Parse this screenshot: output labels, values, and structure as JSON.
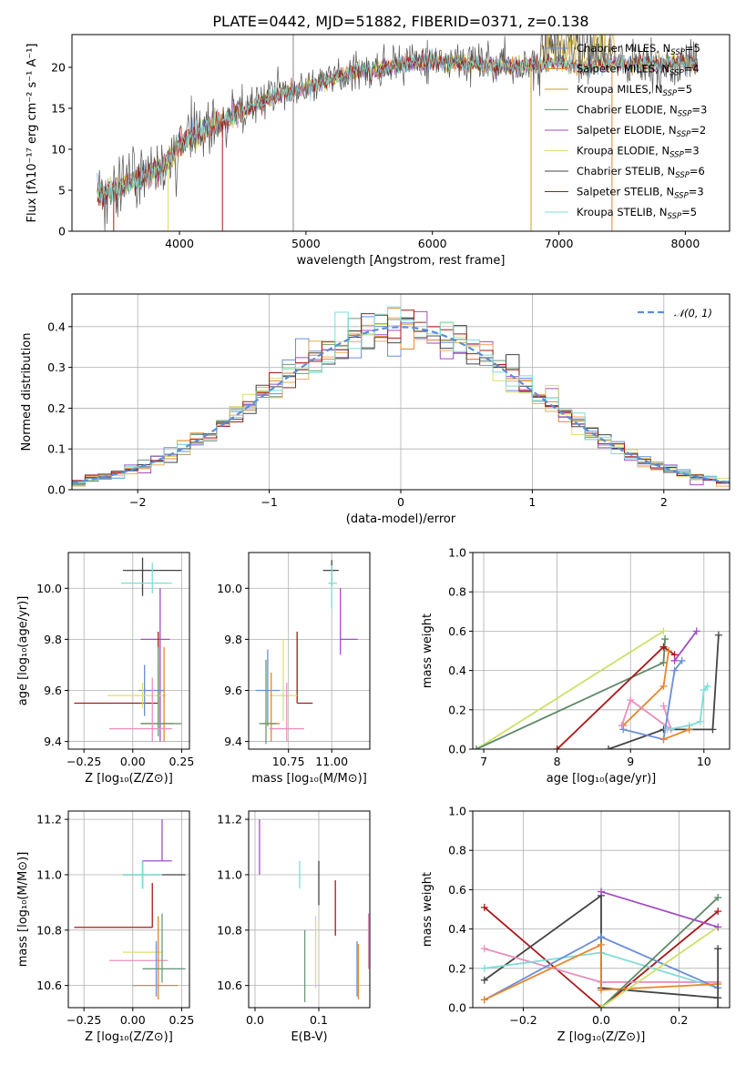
{
  "title": "PLATE=0442, MJD=51882, FIBERID=0371, z=0.138",
  "colors": [
    "#6a8fd8",
    "#e8862a",
    "#6b9b76",
    "#a24dc2",
    "#e8e060",
    "#ecaa5c",
    "#333333",
    "#aa1818",
    "#7fdcd8",
    "#e890c0",
    "#cde066",
    "#aa1818"
  ],
  "chart_data": [
    {
      "id": "spectrum",
      "type": "line",
      "xlabel": "wavelength [Angstrom, rest frame]",
      "ylabel": "Flux [fλ10⁻¹⁷ erg cm⁻² s⁻¹ A⁻¹]",
      "xlim": [
        3150,
        8350
      ],
      "ylim": [
        0,
        24
      ],
      "xticks": [
        4000,
        5000,
        6000,
        7000,
        8000
      ],
      "yticks": [
        0,
        5,
        10,
        15,
        20
      ],
      "legend_position": "right",
      "series": [
        {
          "name": "Chabrier MILES, N_SSP=5",
          "color": "#6a8fd8"
        },
        {
          "name": "Salpeter MILES, N_SSP=4",
          "color": "#e8862a"
        },
        {
          "name": "Kroupa MILES, N_SSP=5",
          "color": "#c8a020"
        },
        {
          "name": "Chabrier ELODIE, N_SSP=3",
          "color": "#6b9b76"
        },
        {
          "name": "Salpeter ELODIE, N_SSP=2",
          "color": "#a24dc2"
        },
        {
          "name": "Kroupa ELODIE, N_SSP=3",
          "color": "#dede70"
        },
        {
          "name": "Chabrier STELIB, N_SSP=6",
          "color": "#444444"
        },
        {
          "name": "Salpeter STELIB, N_SSP=3",
          "color": "#aa1818"
        },
        {
          "name": "Kroupa STELIB, N_SSP=5",
          "color": "#7fdcd8"
        }
      ],
      "continuum": {
        "x": [
          3350,
          3500,
          3700,
          3900,
          4000,
          4200,
          4400,
          4600,
          4800,
          5000,
          5200,
          5400,
          5600,
          5800,
          6000,
          6200,
          6400,
          6600,
          6800,
          7000,
          7200,
          7400,
          7600,
          7800,
          8000,
          8100
        ],
        "y": [
          4.3,
          5.2,
          6.5,
          8.2,
          10.5,
          12.5,
          13.8,
          15.4,
          16.8,
          17.5,
          18.5,
          19.5,
          19.8,
          20.5,
          20.8,
          20.5,
          20.3,
          20.2,
          20.3,
          20.6,
          19.9,
          20.4,
          20.5,
          20.5,
          20.7,
          20.5
        ]
      }
    },
    {
      "id": "residuals",
      "type": "histogram",
      "xlabel": "(data-model)/error",
      "ylabel": "Normed distribution",
      "xlim": [
        -2.5,
        2.5
      ],
      "ylim": [
        0,
        0.48
      ],
      "xticks": [
        -2,
        -1,
        0,
        1,
        2
      ],
      "yticks": [
        0.0,
        0.1,
        0.2,
        0.3,
        0.4
      ],
      "legend": "𝒩(0, 1)",
      "legend_position": "top-right",
      "bin_width": 0.1
    },
    {
      "id": "age-vs-Z",
      "type": "errorbar",
      "xlabel": "Z [log₁₀(Z/Z⊙)]",
      "ylabel": "age  [log₁₀(age/yr)]",
      "xlim": [
        -0.33,
        0.29
      ],
      "ylim": [
        9.37,
        10.14
      ],
      "xticks": [
        -0.25,
        0.0,
        0.25
      ],
      "yticks": [
        9.4,
        9.6,
        9.8,
        10.0
      ],
      "points": [
        {
          "x": 0.05,
          "y": 10.07,
          "xerr": [
            0.1,
            0.2
          ],
          "yerr": [
            0.1,
            0.05
          ],
          "color": "#444444"
        },
        {
          "x": 0.1,
          "y": 10.02,
          "xerr": [
            0.16,
            0.1
          ],
          "yerr": [
            0.04,
            0.08
          ],
          "color": "#7fdcd8"
        },
        {
          "x": 0.14,
          "y": 9.8,
          "xerr": [
            0.1,
            0.05
          ],
          "yerr": [
            0.4,
            0.2
          ],
          "color": "#a24dc2"
        },
        {
          "x": 0.13,
          "y": 9.55,
          "xerr": [
            0.43,
            0.0
          ],
          "yerr": [
            0.1,
            0.28
          ],
          "color": "#aa1818"
        },
        {
          "x": 0.06,
          "y": 9.6,
          "xerr": [
            0.03,
            0.1
          ],
          "yerr": [
            0.1,
            0.1
          ],
          "color": "#6a8fd8"
        },
        {
          "x": 0.05,
          "y": 9.58,
          "xerr": [
            0.18,
            0.12
          ],
          "yerr": [
            0.05,
            0.05
          ],
          "color": "#dede70"
        },
        {
          "x": 0.16,
          "y": 9.47,
          "xerr": [
            0.12,
            0.05
          ],
          "yerr": [
            0.07,
            0.3
          ],
          "color": "#e8862a"
        },
        {
          "x": 0.13,
          "y": 9.47,
          "xerr": [
            0.09,
            0.12
          ],
          "yerr": [
            0.05,
            0.3
          ],
          "color": "#6b9b76"
        },
        {
          "x": 0.1,
          "y": 9.45,
          "xerr": [
            0.22,
            0.1
          ],
          "yerr": [
            0.05,
            0.2
          ],
          "color": "#e890c0"
        }
      ]
    },
    {
      "id": "age-vs-mass",
      "type": "errorbar",
      "xlabel": "mass [log₁₀(M/M⊙)]",
      "ylabel": "",
      "xlim": [
        10.52,
        11.22
      ],
      "ylim": [
        9.37,
        10.14
      ],
      "xticks": [
        10.75,
        11.0
      ],
      "yticks": [
        9.4,
        9.6,
        9.8,
        10.0
      ],
      "points": [
        {
          "x": 11.0,
          "y": 10.07,
          "xerr": [
            0.05,
            0.04
          ],
          "yerr": [
            0.06,
            0.04
          ],
          "color": "#444444"
        },
        {
          "x": 11.0,
          "y": 10.02,
          "xerr": [
            0.02,
            0.03
          ],
          "yerr": [
            0.1,
            0.07
          ],
          "color": "#7fdcd8"
        },
        {
          "x": 11.05,
          "y": 9.8,
          "xerr": [
            0.0,
            0.1
          ],
          "yerr": [
            0.06,
            0.2
          ],
          "color": "#a24dc2"
        },
        {
          "x": 10.8,
          "y": 9.55,
          "xerr": [
            0.0,
            0.09
          ],
          "yerr": [
            0.0,
            0.28
          ],
          "color": "#aa1818"
        },
        {
          "x": 10.63,
          "y": 9.6,
          "xerr": [
            0.07,
            0.07
          ],
          "yerr": [
            0.14,
            0.16
          ],
          "color": "#6a8fd8"
        },
        {
          "x": 10.72,
          "y": 9.58,
          "xerr": [
            0.08,
            0.08
          ],
          "yerr": [
            0.1,
            0.22
          ],
          "color": "#dede70"
        },
        {
          "x": 10.65,
          "y": 9.47,
          "xerr": [
            0.05,
            0.05
          ],
          "yerr": [
            0.07,
            0.2
          ],
          "color": "#e8862a"
        },
        {
          "x": 10.62,
          "y": 9.47,
          "xerr": [
            0.04,
            0.06
          ],
          "yerr": [
            0.08,
            0.25
          ],
          "color": "#6b9b76"
        },
        {
          "x": 10.74,
          "y": 9.45,
          "xerr": [
            0.1,
            0.1
          ],
          "yerr": [
            0.05,
            0.18
          ],
          "color": "#e890c0"
        }
      ]
    },
    {
      "id": "weight-vs-age",
      "type": "line",
      "xlabel": "age  [log₁₀(age/yr)]",
      "ylabel": "mass weight",
      "xlim": [
        6.85,
        10.35
      ],
      "ylim": [
        0,
        1.0
      ],
      "xticks": [
        7,
        8,
        9,
        10
      ],
      "yticks": [
        0.0,
        0.2,
        0.4,
        0.6,
        0.8,
        1.0
      ],
      "series": [
        {
          "color": "#cde066",
          "x": [
            6.9,
            9.45
          ],
          "y": [
            0.0,
            0.6
          ]
        },
        {
          "color": "#5e8a68",
          "x": [
            6.9,
            9.45,
            9.47
          ],
          "y": [
            0.0,
            0.44,
            0.56
          ]
        },
        {
          "color": "#aa1818",
          "x": [
            8.0,
            9.45,
            9.6
          ],
          "y": [
            0.0,
            0.52,
            0.48
          ]
        },
        {
          "color": "#444444",
          "x": [
            8.7,
            9.45,
            10.12,
            10.2
          ],
          "y": [
            0.0,
            0.1,
            0.1,
            0.58
          ]
        },
        {
          "color": "#e8862a",
          "x": [
            8.9,
            9.45,
            9.52
          ],
          "y": [
            0.12,
            0.32,
            0.5
          ]
        },
        {
          "color": "#e890c0",
          "x": [
            8.88,
            9.0,
            9.55,
            9.45
          ],
          "y": [
            0.12,
            0.25,
            0.1,
            0.22
          ]
        },
        {
          "color": "#6a8fd8",
          "x": [
            8.9,
            9.45,
            9.6,
            9.7
          ],
          "y": [
            0.1,
            0.05,
            0.4,
            0.45
          ]
        },
        {
          "color": "#a24dc2",
          "x": [
            9.6,
            9.9
          ],
          "y": [
            0.45,
            0.6
          ]
        },
        {
          "color": "#7fdcd8",
          "x": [
            9.5,
            9.8,
            9.95,
            10.0,
            10.05
          ],
          "y": [
            0.1,
            0.12,
            0.14,
            0.3,
            0.32
          ]
        },
        {
          "color": "#e8862a",
          "x": [
            9.45,
            9.8
          ],
          "y": [
            0.05,
            0.1
          ]
        }
      ]
    },
    {
      "id": "mass-vs-Z",
      "type": "errorbar",
      "xlabel": "Z [log₁₀(Z/Z⊙)]",
      "ylabel": "mass [log₁₀(M/M⊙)]",
      "xlim": [
        -0.33,
        0.29
      ],
      "ylim": [
        10.52,
        11.23
      ],
      "xticks": [
        -0.25,
        0.0,
        0.25
      ],
      "yticks": [
        10.6,
        10.8,
        11.0,
        11.2
      ],
      "points": [
        {
          "x": 0.15,
          "y": 11.05,
          "xerr": [
            0.1,
            0.05
          ],
          "yerr": [
            0.0,
            0.15
          ],
          "color": "#a24dc2"
        },
        {
          "x": 0.05,
          "y": 11.0,
          "xerr": [
            0.1,
            0.22
          ],
          "yerr": [
            0.05,
            0.05
          ],
          "color": "#444444"
        },
        {
          "x": 0.05,
          "y": 11.0,
          "xerr": [
            0.1,
            0.1
          ],
          "yerr": [
            0.05,
            0.05
          ],
          "color": "#7fdcd8"
        },
        {
          "x": 0.1,
          "y": 10.81,
          "xerr": [
            0.4,
            0.0
          ],
          "yerr": [
            0.0,
            0.16
          ],
          "color": "#aa1818"
        },
        {
          "x": 0.1,
          "y": 10.72,
          "xerr": [
            0.15,
            0.05
          ],
          "yerr": [
            0.0,
            0.0
          ],
          "color": "#dede70"
        },
        {
          "x": 0.1,
          "y": 10.69,
          "xerr": [
            0.22,
            0.08
          ],
          "yerr": [
            0.0,
            0.0
          ],
          "color": "#e890c0"
        },
        {
          "x": 0.12,
          "y": 10.66,
          "xerr": [
            0.07,
            0.14
          ],
          "yerr": [
            0.1,
            0.1
          ],
          "color": "#6a8fd8"
        },
        {
          "x": 0.13,
          "y": 10.6,
          "xerr": [
            0.13,
            0.1
          ],
          "yerr": [
            0.05,
            0.25
          ],
          "color": "#e8862a"
        },
        {
          "x": 0.15,
          "y": 10.66,
          "xerr": [
            0.1,
            0.12
          ],
          "yerr": [
            0.05,
            0.2
          ],
          "color": "#6b9b76"
        }
      ]
    },
    {
      "id": "mass-vs-EBV",
      "type": "errorbar",
      "xlabel": "E(B-V)",
      "ylabel": "",
      "xlim": [
        -0.01,
        0.18
      ],
      "ylim": [
        10.52,
        11.23
      ],
      "xticks": [
        0.0,
        0.1
      ],
      "yticks": [
        10.6,
        10.8,
        11.0,
        11.2
      ],
      "points": [
        {
          "x": 0.007,
          "y": 11.1,
          "xerr": [
            0,
            0
          ],
          "yerr": [
            0.1,
            0.1
          ],
          "color": "#a24dc2"
        },
        {
          "x": 0.07,
          "y": 11.0,
          "xerr": [
            0,
            0
          ],
          "yerr": [
            0.05,
            0.05
          ],
          "color": "#7fdcd8"
        },
        {
          "x": 0.1,
          "y": 10.97,
          "xerr": [
            0,
            0
          ],
          "yerr": [
            0.08,
            0.08
          ],
          "color": "#444444"
        },
        {
          "x": 0.126,
          "y": 10.88,
          "xerr": [
            0,
            0
          ],
          "yerr": [
            0.1,
            0.1
          ],
          "color": "#aa1818"
        },
        {
          "x": 0.078,
          "y": 10.67,
          "xerr": [
            0,
            0
          ],
          "yerr": [
            0.13,
            0.13
          ],
          "color": "#6b9b76"
        },
        {
          "x": 0.095,
          "y": 10.72,
          "xerr": [
            0,
            0
          ],
          "yerr": [
            0.13,
            0.13
          ],
          "color": "#dede70"
        },
        {
          "x": 0.16,
          "y": 10.66,
          "xerr": [
            0,
            0
          ],
          "yerr": [
            0.1,
            0.1
          ],
          "color": "#6a8fd8"
        },
        {
          "x": 0.162,
          "y": 10.65,
          "xerr": [
            0,
            0
          ],
          "yerr": [
            0.1,
            0.1
          ],
          "color": "#e8862a"
        },
        {
          "x": 0.178,
          "y": 10.76,
          "xerr": [
            0,
            0
          ],
          "yerr": [
            0.1,
            0.1
          ],
          "color": "#e890c0"
        }
      ]
    },
    {
      "id": "weight-vs-Z",
      "type": "line",
      "xlabel": "Z [log₁₀(Z/Z⊙)]",
      "ylabel": "mass weight",
      "xlim": [
        -0.33,
        0.33
      ],
      "ylim": [
        0,
        1.0
      ],
      "xticks": [
        -0.2,
        0.0,
        0.2
      ],
      "yticks": [
        0.0,
        0.2,
        0.4,
        0.6,
        0.8,
        1.0
      ],
      "series": [
        {
          "color": "#aa1818",
          "x": [
            -0.3,
            0.0,
            0.3
          ],
          "y": [
            0.51,
            0.0,
            0.49
          ]
        },
        {
          "color": "#444444",
          "x": [
            -0.3,
            0.0,
            0.0,
            0.3
          ],
          "y": [
            0.14,
            0.57,
            0.1,
            0.05
          ]
        },
        {
          "color": "#e890c0",
          "x": [
            -0.3,
            0.0,
            0.3
          ],
          "y": [
            0.3,
            0.13,
            0.13
          ]
        },
        {
          "color": "#7fdcd8",
          "x": [
            -0.3,
            0.0,
            0.3
          ],
          "y": [
            0.2,
            0.28,
            0.1
          ]
        },
        {
          "color": "#6a8fd8",
          "x": [
            -0.3,
            0.0,
            0.3
          ],
          "y": [
            0.04,
            0.36,
            0.1
          ]
        },
        {
          "color": "#e8862a",
          "x": [
            -0.3,
            0.0,
            0.0,
            0.3
          ],
          "y": [
            0.04,
            0.32,
            0.09,
            0.12
          ]
        },
        {
          "color": "#5e8a68",
          "x": [
            0.0,
            0.3
          ],
          "y": [
            0.0,
            0.56
          ]
        },
        {
          "color": "#cde066",
          "x": [
            0.0,
            0.3
          ],
          "y": [
            0.0,
            0.41
          ]
        },
        {
          "color": "#a24dc2",
          "x": [
            0.0,
            0.3
          ],
          "y": [
            0.59,
            0.41
          ]
        },
        {
          "color": "#444444",
          "x": [
            0.3,
            0.3
          ],
          "y": [
            0.0,
            0.3
          ]
        }
      ]
    }
  ]
}
